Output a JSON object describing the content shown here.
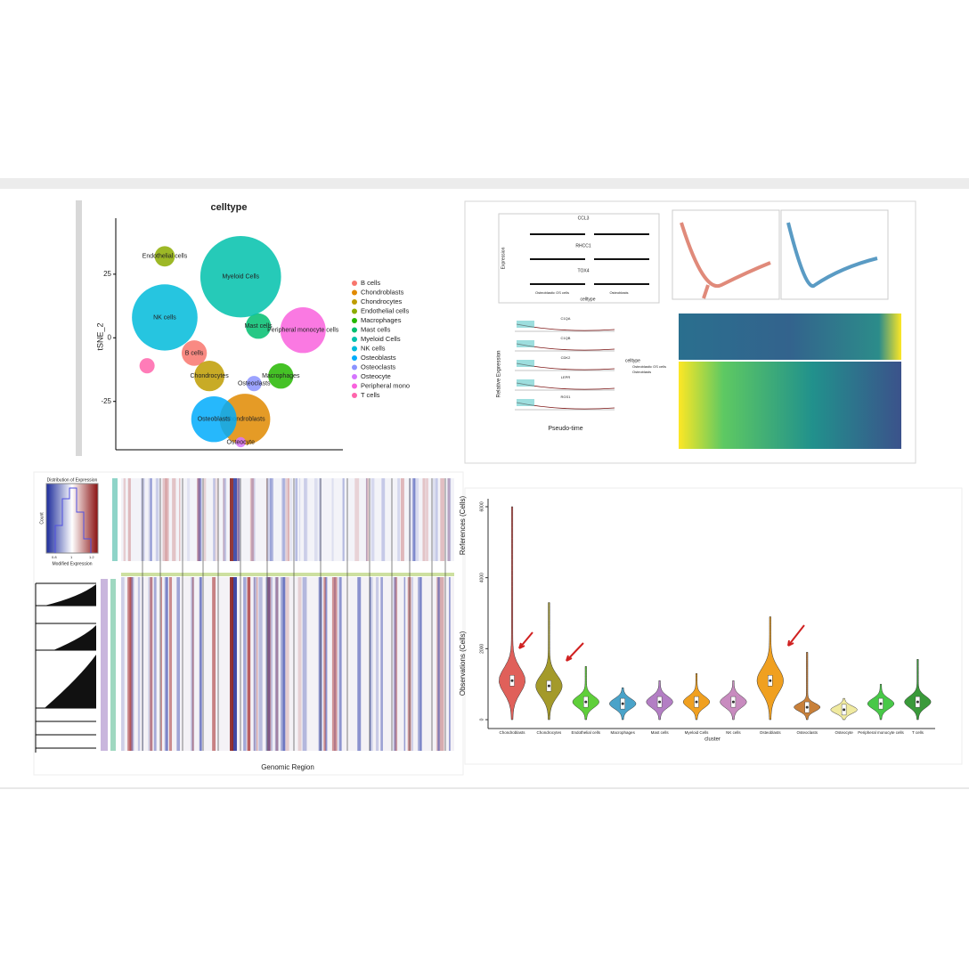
{
  "chart_data": [
    {
      "type": "scatter",
      "title": "celltype",
      "ylabel": "tSNE_2",
      "categories": [
        "B cells",
        "Chondroblasts",
        "Chondrocytes",
        "Endothelial cells",
        "Macrophages",
        "Mast cells",
        "Myeloid Cells",
        "NK cells",
        "Osteoblasts",
        "Osteoclasts",
        "Osteocyte",
        "Peripheral mono",
        "T cells"
      ],
      "cluster_labels": [
        "B cells",
        "Chondroblasts",
        "Chondrocytes",
        "Endothelial cells",
        "Macrophages",
        "Mast cells",
        "Myeloid Cells",
        "NK cells",
        "Osteoblasts",
        "Osteoclasts",
        "Osteocyte",
        "Peripheral monocyte cells",
        null
      ],
      "x": [
        -13.9,
        6.2,
        -7.9,
        -25.6,
        20.4,
        11.5,
        4.5,
        -25.6,
        -6.1,
        9.8,
        4.5,
        29.2,
        -32.6
      ],
      "y": [
        -6,
        -32,
        -15,
        32,
        -15,
        4.6,
        24,
        8,
        -32,
        -18,
        -41,
        3,
        -11
      ],
      "sizes": [
        5,
        10,
        6,
        4,
        5,
        5,
        16,
        13,
        9,
        3,
        2,
        9,
        3
      ],
      "colors": [
        "#F8766D",
        "#E18A00",
        "#BE9C00",
        "#8CAB00",
        "#24B700",
        "#00BE70",
        "#00C1AB",
        "#00BBDA",
        "#00ACFC",
        "#8B93FF",
        "#D575FE",
        "#F962DD",
        "#FF65AC"
      ],
      "xlim": [
        -45,
        45
      ],
      "ylim": [
        -44,
        47
      ],
      "yticks": [
        -25,
        0,
        25
      ]
    },
    {
      "type": "violin",
      "xlabel": "cluster",
      "ylabel": "Observations (Cells)",
      "ylabel2": "References (Cells)",
      "categories": [
        "Chondroblasts",
        "Chondrocytes",
        "Endothelial cells",
        "Macrophages",
        "Mast cells",
        "Myeloid Cells",
        "NK cells",
        "Osteoblasts",
        "Osteoclasts",
        "Osteocyte",
        "Peripheral monocyte cells",
        "T cells"
      ],
      "medians": [
        1100,
        950,
        500,
        450,
        500,
        500,
        500,
        1100,
        350,
        280,
        450,
        500
      ],
      "maxima": [
        6000,
        3300,
        1500,
        900,
        1100,
        1300,
        1100,
        2900,
        1900,
        600,
        1000,
        1700
      ],
      "colors": [
        "#e0605a",
        "#a49a2a",
        "#5fcf3a",
        "#4aa3c9",
        "#b37ec4",
        "#f0a020",
        "#c88bbf",
        "#f0a020",
        "#c8803a",
        "#f0eaa0",
        "#48c848",
        "#3a9a3a"
      ],
      "ylim": [
        -250,
        6225
      ],
      "yticks": [
        0,
        2000,
        4000,
        6000
      ]
    }
  ],
  "trajectory_panel": {
    "genes": [
      "CCL3",
      "RHCC1",
      "TOX4"
    ],
    "groups": [
      "Osteoblastic OS cells",
      "Osteoblasts"
    ],
    "xlabel": "celltype",
    "ylabel": "Expression",
    "pseudo_genes": [
      "C1QA",
      "C1QB",
      "CDK2",
      "LEPR",
      "RGS1"
    ],
    "pseudo_xlabel": "Pseudo-time",
    "pseudo_ylabel": "Relative Expression",
    "legend_title": "celltype",
    "legend_items": [
      "Osteoblastic OS cells",
      "Osteoblasts"
    ]
  },
  "cnv_panel": {
    "hist_title": "Distribution of Expression",
    "hist_ylabel": "Count",
    "hist_xlabel": "Modified Expression",
    "hist_ticks": [
      "0.8",
      "1",
      "1.2"
    ],
    "xlabel": "Genomic Region"
  }
}
